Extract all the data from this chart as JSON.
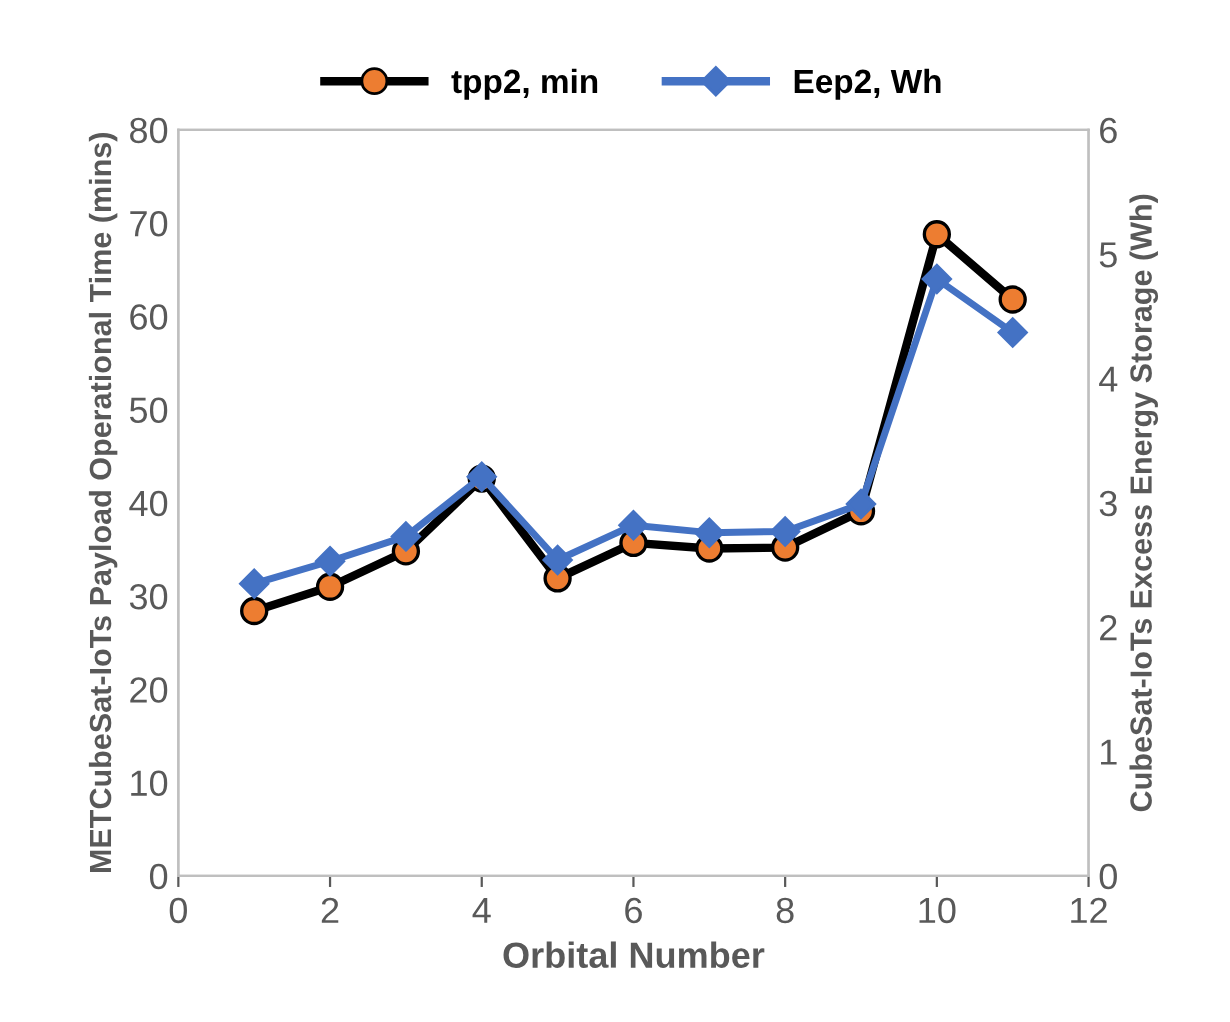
{
  "chart_data": {
    "type": "line",
    "xlabel": "Orbital Number",
    "ylabel": "METCubeSat-IoTs Payload Operational Time (mins)",
    "y2label": "CubeSat-IoTs Excess Energy Storage (Wh)",
    "x": [
      1,
      2,
      3,
      4,
      5,
      6,
      7,
      8,
      9,
      10,
      11
    ],
    "series": [
      {
        "name": "tpp2, min",
        "color": "#000000",
        "marker": "circle",
        "values": [
          28.4,
          31.0,
          34.8,
          42.6,
          31.9,
          35.7,
          35.1,
          35.2,
          39.1,
          68.8,
          61.8
        ]
      },
      {
        "name": "Eep2, Wh",
        "color": "#4472c4",
        "marker": "diamond",
        "axis": "y2",
        "values": [
          2.35,
          2.53,
          2.73,
          3.21,
          2.54,
          2.82,
          2.76,
          2.77,
          2.99,
          4.8,
          4.37
        ]
      }
    ],
    "xlim": [
      0,
      12
    ],
    "xticks": [
      0,
      2,
      4,
      6,
      8,
      10,
      12
    ],
    "ylim": [
      0,
      80
    ],
    "yticks": [
      0,
      10,
      20,
      30,
      40,
      50,
      60,
      70,
      80
    ],
    "y2lim": [
      0,
      6
    ],
    "y2ticks": [
      0,
      1,
      2,
      3,
      4,
      5,
      6
    ],
    "grid": false,
    "legend": "top"
  }
}
